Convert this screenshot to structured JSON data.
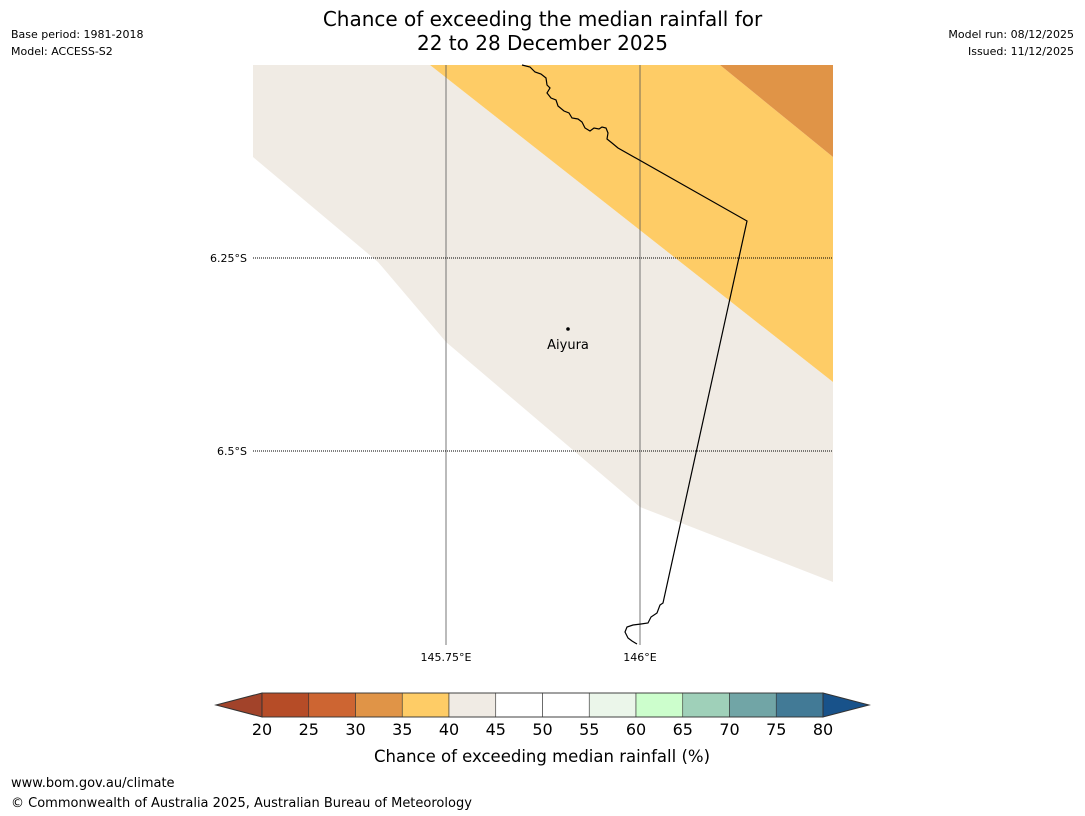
{
  "title": {
    "line1": "Chance of exceeding the median rainfall for",
    "line2": "22 to 28 December 2025"
  },
  "meta": {
    "base_period": "Base period: 1981-2018",
    "model": "Model: ACCESS-S2",
    "model_run": "Model run: 08/12/2025",
    "issued": "Issued: 11/12/2025"
  },
  "map": {
    "lat_labels": [
      "6.25°S",
      "6.5°S"
    ],
    "lon_labels": [
      "145.75°E",
      "146°E"
    ],
    "place": {
      "name": "Aiyura",
      "lat": -6.34,
      "lon": 145.906
    },
    "region_colors": {
      "band_35_40": "#fecc66",
      "band_30_35": "#e09447",
      "band_40_45": "#f0ebe4",
      "border": "#000000",
      "gridline": "#555555"
    }
  },
  "colorbar": {
    "title": "Chance of exceeding median rainfall (%)",
    "ticks": [
      "20",
      "25",
      "30",
      "35",
      "40",
      "45",
      "50",
      "55",
      "60",
      "65",
      "70",
      "75",
      "80"
    ],
    "colors": [
      "#a2432a",
      "#b64c27",
      "#cd6532",
      "#e09447",
      "#fecc66",
      "#f0ebe4",
      "#ffffff",
      "#ffffff",
      "#ebf6ea",
      "#ccfecc",
      "#9fd0b9",
      "#71a5a6",
      "#427a96",
      "#18528a"
    ]
  },
  "footer": {
    "url": "www.bom.gov.au/climate",
    "copyright": "© Commonwealth of Australia 2025, Australian Bureau of Meteorology"
  }
}
